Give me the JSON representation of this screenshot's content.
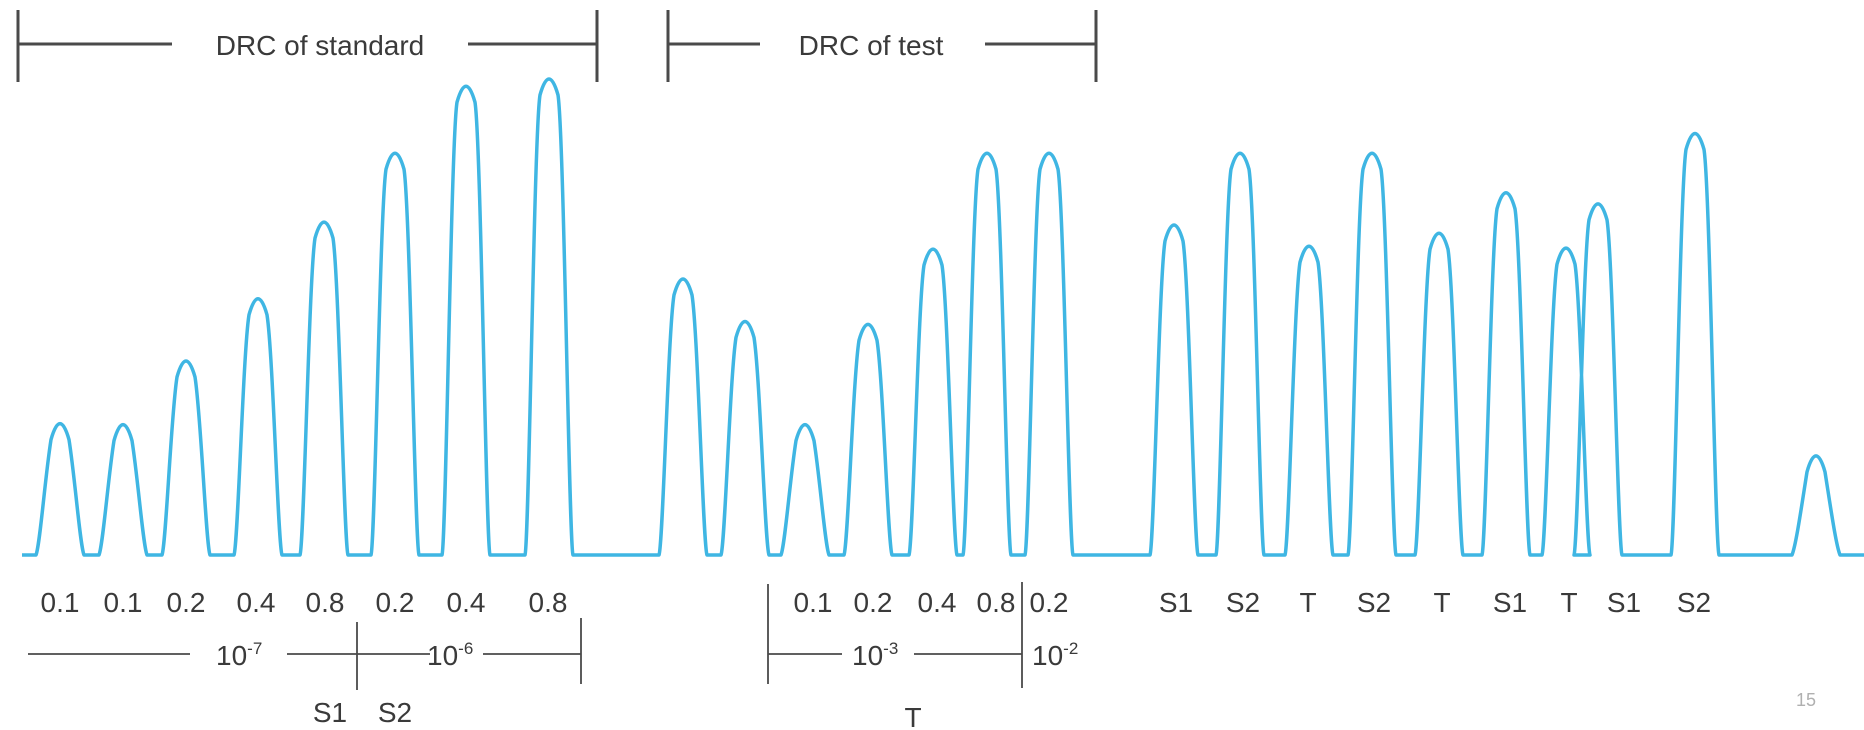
{
  "brackets": {
    "standard": "DRC of standard",
    "test": "DRC of test"
  },
  "trace_color": "#3fb6e3",
  "peak_heights": [
    0.285,
    0.283,
    0.415,
    0.544,
    0.703,
    0.846,
    0.985,
    1.0,
    0.585,
    0.497,
    0.283,
    0.491,
    0.647,
    0.846,
    0.846,
    0.697,
    0.846,
    0.653,
    0.846,
    0.68,
    0.764,
    0.649,
    0.741,
    0.887,
    0.218
  ],
  "standard_doses": [
    "0.1",
    "0.1",
    "0.2",
    "0.4",
    "0.8",
    "0.2",
    "0.4",
    "0.8"
  ],
  "standard_conc": [
    "10",
    "-7",
    "10",
    "-6"
  ],
  "standard_sublabels": [
    "S1",
    "S2"
  ],
  "test_doses": [
    "0.1",
    "0.2",
    "0.4",
    "0.8",
    "0.2"
  ],
  "test_conc": [
    "10",
    "-3",
    "10",
    "-2"
  ],
  "test_sublabel": "T",
  "sequence": [
    "S1",
    "S2",
    "T",
    "S2",
    "T",
    "S1",
    "T",
    "S1",
    "S2"
  ],
  "page_number": "15"
}
